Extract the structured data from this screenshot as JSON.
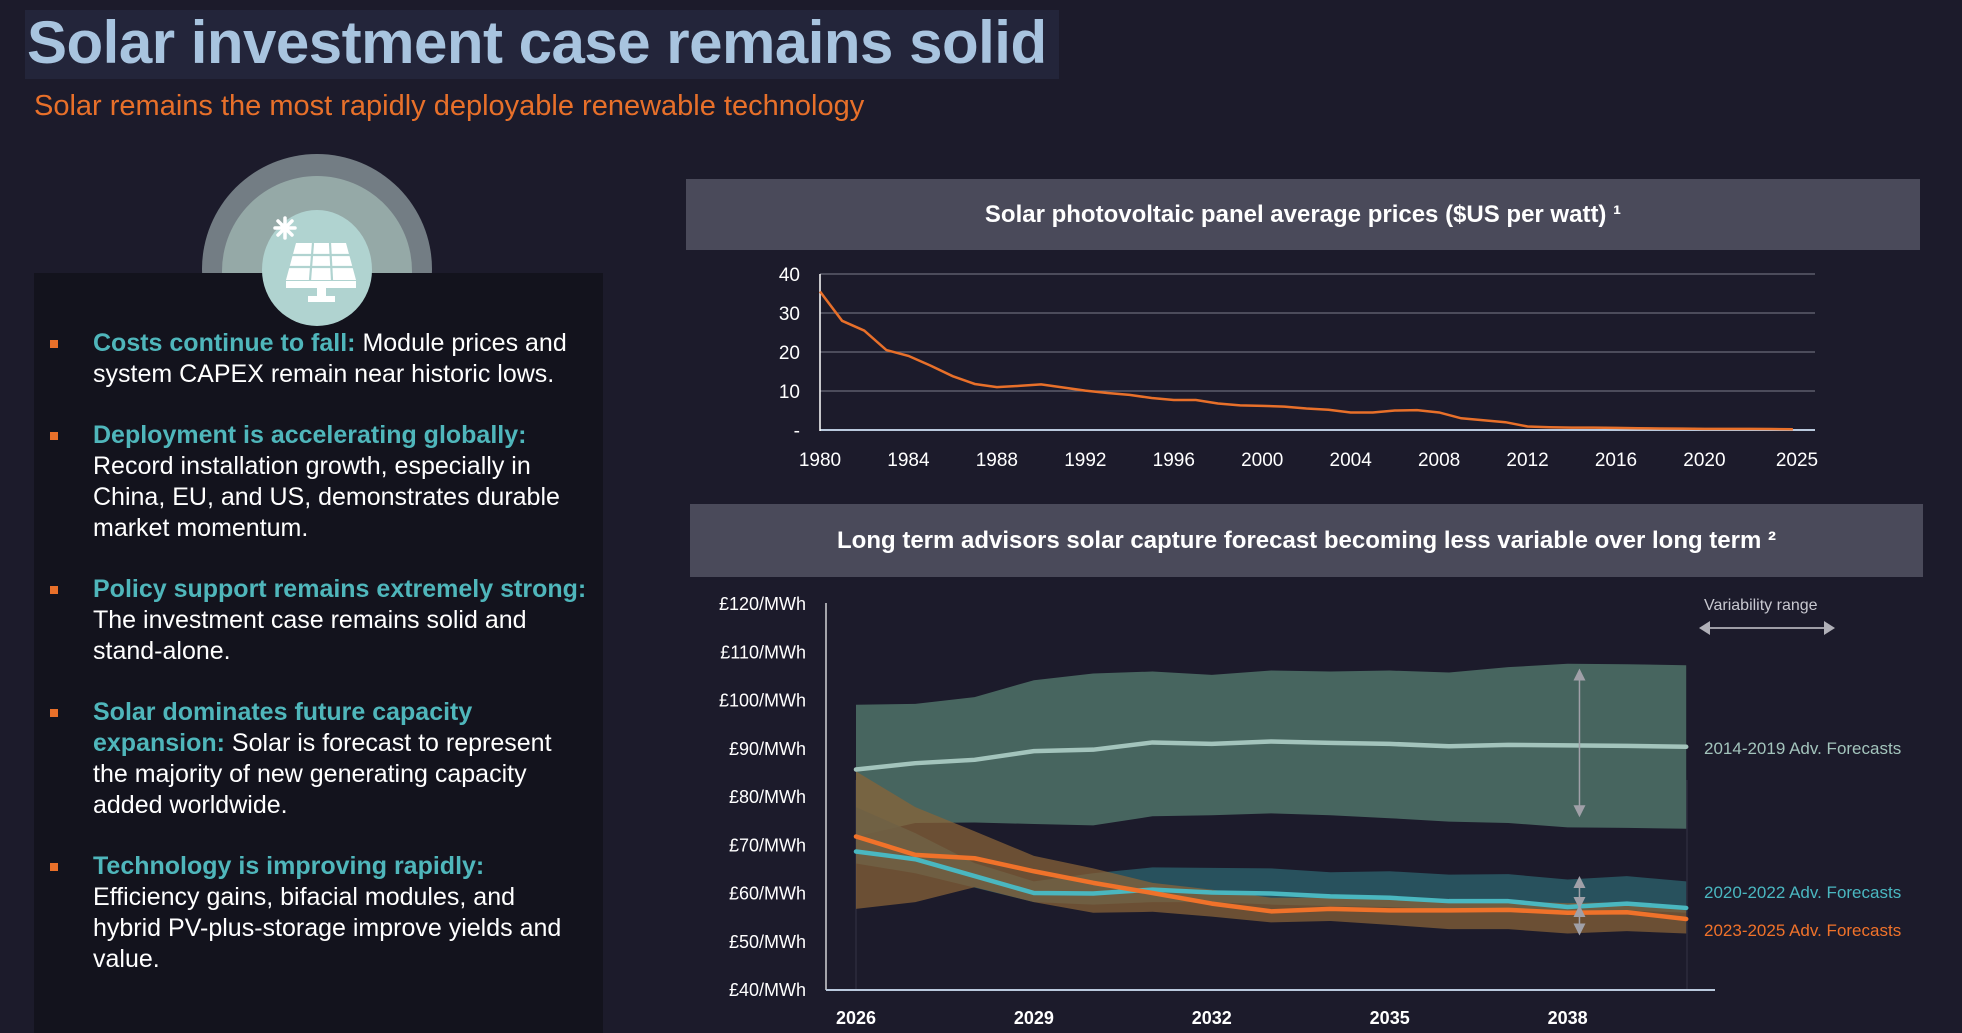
{
  "header": {
    "title": "Solar investment case remains solid",
    "subtitle": "Solar remains the most rapidly deployable renewable technology"
  },
  "icon": "solar-panel-icon",
  "bullets": [
    {
      "heading": "Costs continue to fall:",
      "body": " Module prices and system CAPEX remain near historic lows."
    },
    {
      "heading": "Deployment is accelerating globally:",
      "body": " Record installation growth, especially in China, EU, and US, demonstrates durable market momentum."
    },
    {
      "heading": "Policy support remains extremely strong:",
      "body": " The investment case remains solid and stand-alone."
    },
    {
      "heading": "Solar dominates future capacity expansion:",
      "body": " Solar is forecast to represent the majority of new generating capacity added worldwide."
    },
    {
      "heading": "Technology is improving rapidly:",
      "body": " Efficiency gains, bifacial modules, and hybrid PV-plus-storage improve yields and value."
    }
  ],
  "colors": {
    "accent": "#e8702a",
    "teal": "#4fb6bb",
    "title": "#a8c4df"
  },
  "chart_data": [
    {
      "type": "line",
      "title": "Solar photovoltaic panel average prices ($US per watt) ¹",
      "xlabel": "",
      "ylabel": "",
      "ylim": [
        0,
        40
      ],
      "xlim": [
        1980,
        2025
      ],
      "yticks": [
        {
          "v": 40,
          "label": "40"
        },
        {
          "v": 30,
          "label": "30"
        },
        {
          "v": 20,
          "label": "20"
        },
        {
          "v": 10,
          "label": "10"
        },
        {
          "v": 0,
          "label": "-"
        }
      ],
      "xticks": [
        "1980",
        "1984",
        "1988",
        "1992",
        "1996",
        "2000",
        "2004",
        "2008",
        "2012",
        "2016",
        "2020",
        "2025"
      ],
      "grid": true,
      "x": [
        1980,
        1981,
        1982,
        1983,
        1984,
        1985,
        1986,
        1987,
        1988,
        1989,
        1990,
        1991,
        1992,
        1993,
        1994,
        1995,
        1996,
        1997,
        1998,
        1999,
        2000,
        2001,
        2002,
        2003,
        2004,
        2005,
        2006,
        2007,
        2008,
        2009,
        2010,
        2011,
        2012,
        2013,
        2014,
        2015,
        2016,
        2017,
        2018,
        2019,
        2020,
        2021,
        2022,
        2023,
        2024
      ],
      "series": [
        {
          "name": "Price",
          "color": "#e8702a",
          "values": [
            35.5,
            28,
            25.5,
            20.5,
            19,
            16.5,
            13.8,
            11.8,
            11,
            11.3,
            11.7,
            10.9,
            10.1,
            9.5,
            9.0,
            8.2,
            7.7,
            7.7,
            6.8,
            6.3,
            6.2,
            6.0,
            5.5,
            5.2,
            4.5,
            4.5,
            5.0,
            5.1,
            4.5,
            3.0,
            2.5,
            2.0,
            0.9,
            0.7,
            0.6,
            0.6,
            0.55,
            0.45,
            0.4,
            0.35,
            0.3,
            0.3,
            0.28,
            0.25,
            0.2
          ]
        }
      ]
    },
    {
      "type": "area",
      "title": "Long term advisors solar capture forecast becoming less variable over long term ²",
      "ylim": [
        40,
        120
      ],
      "yticks": [
        "£120/MWh",
        "£110/MWh",
        "£100/MWh",
        "£90/MWh",
        "£80/MWh",
        "£70/MWh",
        "£60/MWh",
        "£50/MWh",
        "£40/MWh"
      ],
      "xticks": [
        "2026",
        "2029",
        "2032",
        "2035",
        "2038"
      ],
      "x": [
        2026,
        2027,
        2028,
        2029,
        2030,
        2031,
        2032,
        2033,
        2034,
        2035,
        2036,
        2037,
        2038,
        2039,
        2040
      ],
      "legend_note": "Variability range",
      "series": [
        {
          "name": "2014-2019 Adv. Forecasts",
          "color": "#a3c4bc",
          "band_color": "#4f7268",
          "values": [
            85.5,
            86.8,
            87.5,
            89.3,
            89.6,
            91.1,
            90.8,
            91.3,
            91,
            90.8,
            90.3,
            90.6,
            90.5,
            90.4,
            90.2
          ],
          "upper": [
            98.9,
            99.1,
            100.5,
            104,
            105.4,
            105.8,
            105.1,
            106,
            105.8,
            106,
            105.6,
            106.7,
            107.4,
            107.3,
            107.1
          ],
          "lower": [
            71.6,
            74.4,
            74.5,
            74.2,
            73.9,
            75.8,
            76,
            76.4,
            76,
            75.4,
            74.7,
            74.4,
            73.5,
            73.4,
            73.2
          ],
          "range_marker": [
            106,
            76
          ]
        },
        {
          "name": "2020-2022 Adv. Forecasts",
          "color": "#4ab7c0",
          "band_color": "#2a5a66",
          "values": [
            68.5,
            66.9,
            63.4,
            59.9,
            59.8,
            60.6,
            60,
            59.8,
            59.2,
            58.9,
            58.2,
            58.2,
            57,
            57.7,
            56.8
          ],
          "upper": [
            77.7,
            72.3,
            66.1,
            62.3,
            64,
            65.2,
            65.1,
            65,
            64.2,
            64.4,
            63.7,
            63.8,
            62.7,
            63.4,
            62.3
          ],
          "lower": [
            66,
            64,
            61,
            58,
            57.5,
            58,
            58,
            57.5,
            57.2,
            57,
            56.5,
            56.5,
            56,
            56.3,
            55.8
          ],
          "range_marker": [
            63,
            57
          ]
        },
        {
          "name": "2023-2025 Adv. Forecasts",
          "color": "#f0722a",
          "band_color": "#8a6438",
          "values": [
            71.6,
            67.8,
            67.1,
            64.4,
            62,
            59.9,
            57.7,
            56.1,
            56.6,
            56.3,
            56.3,
            56.4,
            55.8,
            55.9,
            54.5
          ],
          "upper": [
            85.1,
            77.7,
            72.7,
            67.6,
            65,
            62,
            60.6,
            58.9,
            58.9,
            58.5,
            58.2,
            58.2,
            57.8,
            58,
            56.3
          ],
          "lower": [
            56.6,
            58,
            61.1,
            58,
            55.8,
            56,
            55,
            53.8,
            54.1,
            53.3,
            52.4,
            52.4,
            51.5,
            52,
            51.5
          ],
          "range_marker": [
            57,
            51.5
          ]
        }
      ]
    }
  ]
}
